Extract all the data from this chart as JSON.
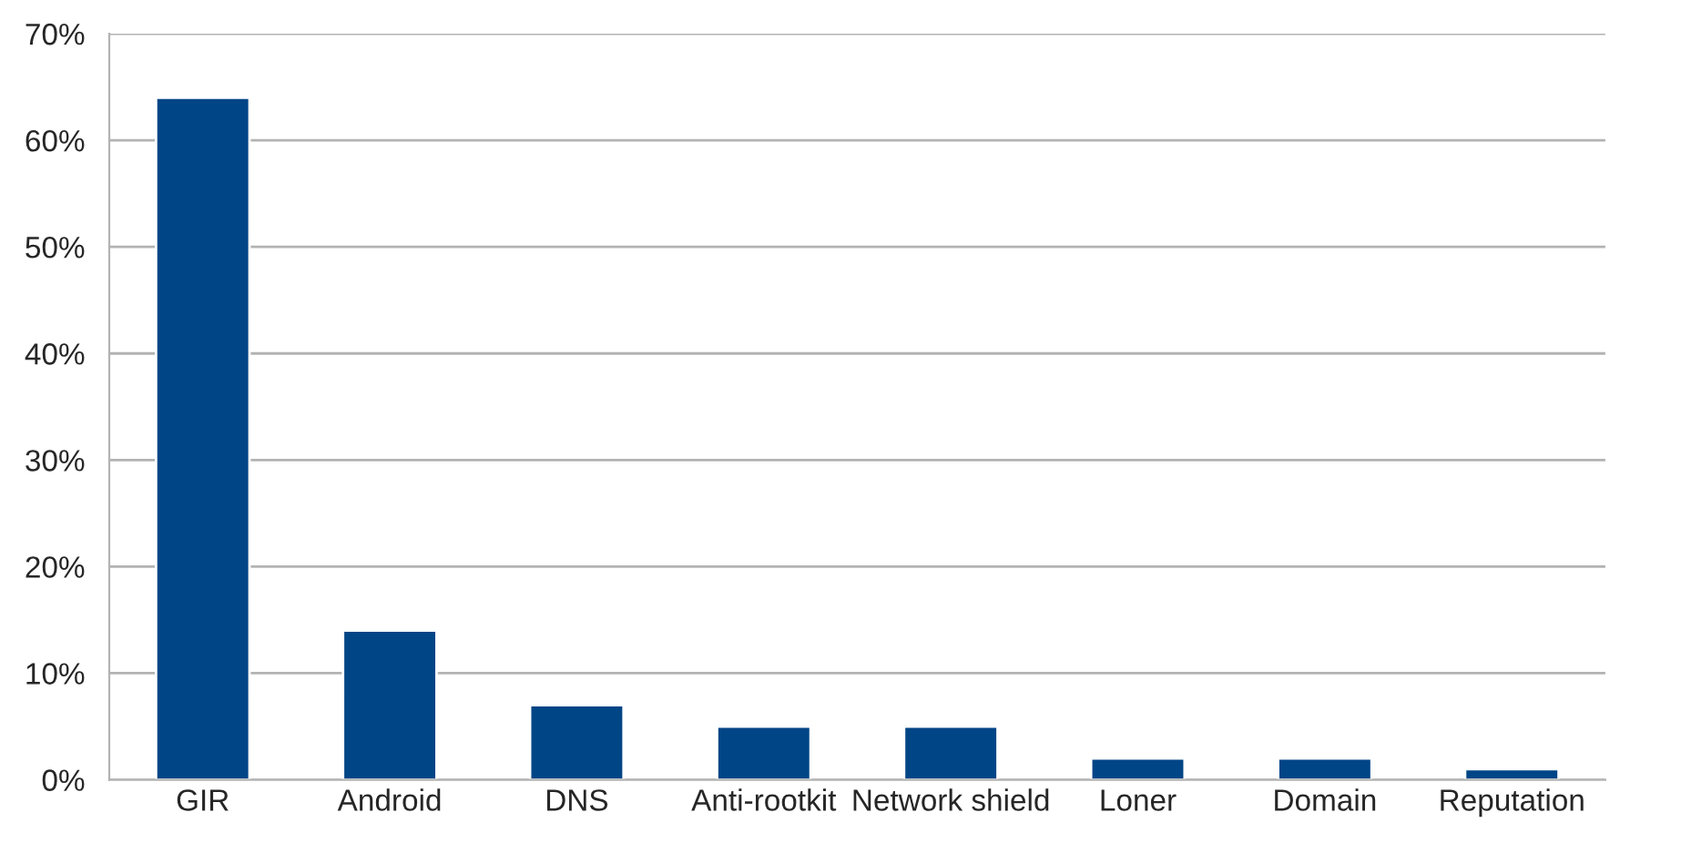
{
  "chart_data": {
    "type": "bar",
    "categories": [
      "GIR",
      "Android",
      "DNS",
      "Anti-rootkit",
      "Network shield",
      "Loner",
      "Domain",
      "Reputation"
    ],
    "series": [
      {
        "color": "#004586",
        "values": [
          64,
          14,
          7,
          5,
          5,
          2,
          2,
          1
        ]
      }
    ],
    "ylim": [
      0,
      70
    ],
    "yticks": [
      {
        "value": 0,
        "label": "0%"
      },
      {
        "value": 10,
        "label": "10%"
      },
      {
        "value": 20,
        "label": "20%"
      },
      {
        "value": 30,
        "label": "30%"
      },
      {
        "value": 40,
        "label": "40%"
      },
      {
        "value": 50,
        "label": "50%"
      },
      {
        "value": 60,
        "label": "60%"
      },
      {
        "value": 70,
        "label": "70%"
      }
    ],
    "grid": "y"
  }
}
